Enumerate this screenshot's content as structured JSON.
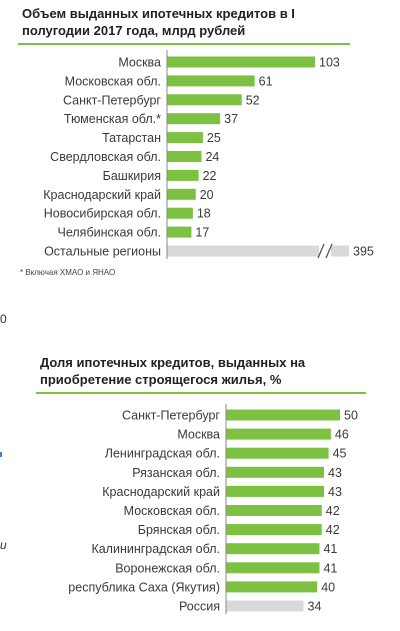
{
  "chart_data": [
    {
      "type": "bar",
      "title": "Объем выданных ипотечных кредитов в I полугодии 2017 года, млрд рублей",
      "categories": [
        "Москва",
        "Московская обл.",
        "Санкт-Петербург",
        "Тюменская обл.*",
        "Татарстан",
        "Свердловская обл.",
        "Башкирия",
        "Краснодарский край",
        "Новосибирская обл.",
        "Челябинская обл.",
        "Остальные регионы"
      ],
      "values": [
        103,
        61,
        52,
        37,
        25,
        24,
        22,
        20,
        18,
        17,
        395
      ],
      "axis_break_category": "Остальные регионы",
      "break_symbol": "//",
      "bar_color": "#7cc142",
      "muted_bar_color": "#d9d9d9",
      "orientation": "horizontal",
      "footnote": "* Включая ХМАО и ЯНАО"
    },
    {
      "type": "bar",
      "title": "Доля ипотечных кредитов, выданных на приобретение строящегося жилья, %",
      "categories": [
        "Санкт-Петербург",
        "Москва",
        "Ленинградская обл.",
        "Рязанская обл.",
        "Краснодарский край",
        "Московская обл.",
        "Брянская обл.",
        "Калининградская обл.",
        "Воронежская обл.",
        "республика Саха (Якутия)",
        "Россия"
      ],
      "values": [
        50,
        46,
        45,
        43,
        43,
        42,
        42,
        41,
        41,
        40,
        34
      ],
      "muted_category": "Россия",
      "bar_color": "#7cc142",
      "muted_bar_color": "#d9d9d9",
      "orientation": "horizontal"
    }
  ],
  "page_edge": {
    "left_fragments": [
      "0",
      "и"
    ]
  }
}
